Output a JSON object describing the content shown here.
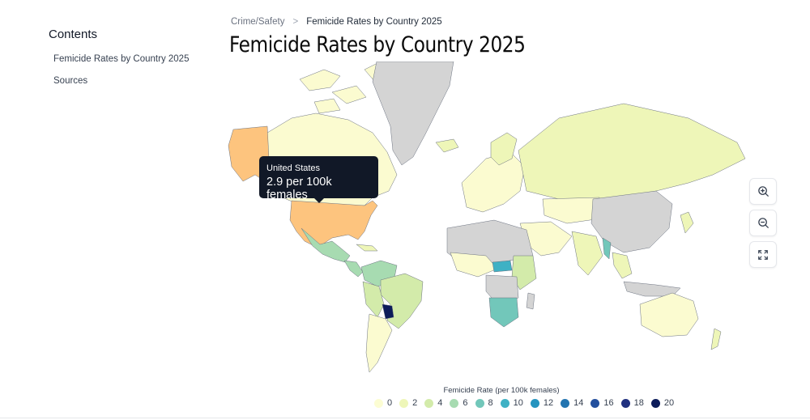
{
  "sidebar": {
    "heading": "Contents",
    "items": [
      {
        "label": "Femicide Rates by Country 2025"
      },
      {
        "label": "Sources"
      }
    ]
  },
  "breadcrumb": {
    "parent": "Crime/Safety",
    "separator": ">",
    "current": "Femicide Rates by Country 2025"
  },
  "page_title": "Femicide Rates by Country 2025",
  "tooltip": {
    "country": "United States",
    "value": "2.9 per 100k females"
  },
  "map": {
    "no_data_color": "#d4d4d4",
    "highlighted_country": "United States",
    "countries": [
      {
        "name": "Greenland",
        "fill_class": "no-data"
      },
      {
        "name": "Canada",
        "fill_class": "0-2"
      },
      {
        "name": "United States",
        "fill_class": "2-4",
        "value": 2.9
      },
      {
        "name": "Alaska (United States)",
        "fill_class": "2-4"
      },
      {
        "name": "Mexico",
        "fill_class": "4-6"
      },
      {
        "name": "Brazil",
        "fill_class": "2-4"
      },
      {
        "name": "Paraguay",
        "fill_class": "18-20"
      },
      {
        "name": "Russia",
        "fill_class": "2-4"
      },
      {
        "name": "China",
        "fill_class": "no-data"
      },
      {
        "name": "Australia",
        "fill_class": "0-2"
      },
      {
        "name": "South Africa",
        "fill_class": "8-10"
      },
      {
        "name": "Myanmar",
        "fill_class": "8-10"
      },
      {
        "name": "Central African Republic",
        "fill_class": "10-12"
      }
    ]
  },
  "controls": [
    {
      "icon": "zoom-in-icon"
    },
    {
      "icon": "zoom-out-icon"
    },
    {
      "icon": "fullscreen-icon"
    }
  ],
  "legend": {
    "title": "Femicide Rate (per 100k females)",
    "items": [
      {
        "label": "0",
        "color": "#fcfdd3"
      },
      {
        "label": "2",
        "color": "#eef6b8"
      },
      {
        "label": "4",
        "color": "#d3ebaa"
      },
      {
        "label": "6",
        "color": "#a7dbb1"
      },
      {
        "label": "8",
        "color": "#72c7ba"
      },
      {
        "label": "10",
        "color": "#3fb1c4"
      },
      {
        "label": "12",
        "color": "#2594bf"
      },
      {
        "label": "14",
        "color": "#2274b0"
      },
      {
        "label": "16",
        "color": "#234f9d"
      },
      {
        "label": "18",
        "color": "#20307f"
      },
      {
        "label": "20",
        "color": "#0c1c5a"
      }
    ],
    "us_color": "#fdc47e"
  }
}
